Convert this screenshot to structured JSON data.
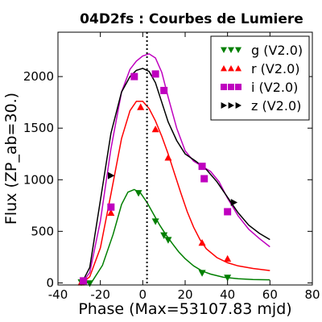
{
  "chart_data": {
    "type": "scatter",
    "title": "04D2fs : Courbes de Lumiere",
    "xlabel": "Phase (Max=53107.83 mjd)",
    "ylabel": "Flux (ZP_ab=30.)",
    "xlim": [
      -40,
      80
    ],
    "ylim": [
      -20,
      2430
    ],
    "x_ticks": [
      -40,
      -20,
      0,
      20,
      40,
      60,
      80
    ],
    "y_ticks": [
      0,
      500,
      1000,
      1500,
      2000
    ],
    "grid": false,
    "legend_position": "top-right",
    "max_marker_x": 2,
    "series": [
      {
        "name": "g (V2.0)",
        "color": "#007f00",
        "marker": "triangle-down",
        "points": [
          [
            -29,
            5
          ],
          [
            -25,
            -5
          ],
          [
            -2,
            870
          ],
          [
            6,
            595
          ],
          [
            10,
            460
          ],
          [
            12,
            415
          ],
          [
            28,
            95
          ],
          [
            40,
            50
          ]
        ],
        "curve": [
          [
            -29,
            -10
          ],
          [
            -24,
            10
          ],
          [
            -19,
            170
          ],
          [
            -14,
            470
          ],
          [
            -10,
            760
          ],
          [
            -7,
            880
          ],
          [
            -4,
            905
          ],
          [
            -1,
            870
          ],
          [
            2,
            780
          ],
          [
            5,
            670
          ],
          [
            8,
            560
          ],
          [
            11,
            465
          ],
          [
            14,
            380
          ],
          [
            17,
            300
          ],
          [
            20,
            235
          ],
          [
            24,
            165
          ],
          [
            28,
            115
          ],
          [
            32,
            85
          ],
          [
            38,
            55
          ],
          [
            45,
            40
          ],
          [
            52,
            33
          ],
          [
            60,
            30
          ]
        ]
      },
      {
        "name": "r (V2.0)",
        "color": "#ff0000",
        "marker": "triangle-up",
        "points": [
          [
            -29,
            5
          ],
          [
            -15,
            680
          ],
          [
            -1,
            1705
          ],
          [
            12,
            1215
          ],
          [
            28,
            390
          ],
          [
            40,
            235
          ],
          [
            6,
            1490
          ]
        ],
        "curve": [
          [
            -29,
            -10
          ],
          [
            -25,
            60
          ],
          [
            -20,
            340
          ],
          [
            -15,
            860
          ],
          [
            -10,
            1400
          ],
          [
            -6,
            1670
          ],
          [
            -3,
            1760
          ],
          [
            0,
            1760
          ],
          [
            3,
            1690
          ],
          [
            6,
            1570
          ],
          [
            9,
            1420
          ],
          [
            12,
            1250
          ],
          [
            15,
            1060
          ],
          [
            18,
            870
          ],
          [
            21,
            690
          ],
          [
            24,
            540
          ],
          [
            27,
            420
          ],
          [
            30,
            330
          ],
          [
            35,
            245
          ],
          [
            40,
            195
          ],
          [
            45,
            165
          ],
          [
            52,
            140
          ],
          [
            60,
            120
          ]
        ]
      },
      {
        "name": "i (V2.0)",
        "color": "#bf00bf",
        "marker": "square",
        "points": [
          [
            -28,
            20
          ],
          [
            -15,
            735
          ],
          [
            -4,
            2000
          ],
          [
            6,
            2025
          ],
          [
            10,
            1865
          ],
          [
            28,
            1130
          ],
          [
            29,
            1010
          ],
          [
            40,
            690
          ]
        ],
        "curve": [
          [
            -29,
            -10
          ],
          [
            -25,
            100
          ],
          [
            -20,
            600
          ],
          [
            -15,
            1300
          ],
          [
            -10,
            1850
          ],
          [
            -6,
            2070
          ],
          [
            -3,
            2150
          ],
          [
            0,
            2200
          ],
          [
            3,
            2220
          ],
          [
            6,
            2180
          ],
          [
            9,
            2040
          ],
          [
            12,
            1800
          ],
          [
            16,
            1500
          ],
          [
            20,
            1280
          ],
          [
            24,
            1180
          ],
          [
            28,
            1130
          ],
          [
            32,
            1080
          ],
          [
            36,
            980
          ],
          [
            40,
            820
          ],
          [
            45,
            650
          ],
          [
            50,
            520
          ],
          [
            55,
            430
          ],
          [
            60,
            350
          ]
        ]
      },
      {
        "name": "z (V2.0)",
        "color": "#000000",
        "marker": "triangle-right",
        "points": [
          [
            -15,
            1040
          ],
          [
            43,
            780
          ]
        ],
        "curve": [
          [
            -29,
            -10
          ],
          [
            -25,
            150
          ],
          [
            -20,
            800
          ],
          [
            -15,
            1450
          ],
          [
            -10,
            1850
          ],
          [
            -6,
            2000
          ],
          [
            -3,
            2060
          ],
          [
            0,
            2080
          ],
          [
            3,
            2050
          ],
          [
            6,
            1940
          ],
          [
            9,
            1750
          ],
          [
            12,
            1560
          ],
          [
            16,
            1380
          ],
          [
            20,
            1250
          ],
          [
            25,
            1180
          ],
          [
            30,
            1100
          ],
          [
            35,
            980
          ],
          [
            40,
            830
          ],
          [
            45,
            680
          ],
          [
            50,
            560
          ],
          [
            55,
            480
          ],
          [
            60,
            420
          ]
        ]
      }
    ]
  }
}
